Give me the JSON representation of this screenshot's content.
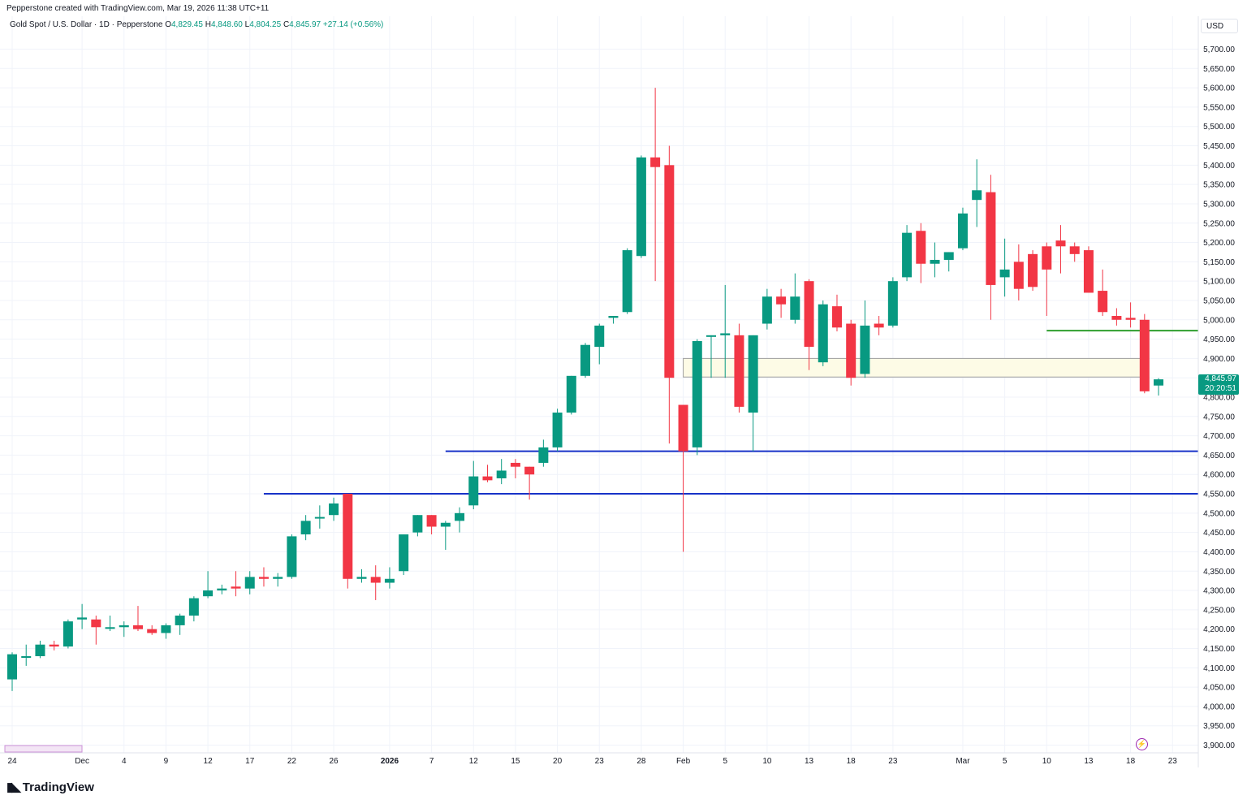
{
  "header": {
    "credit": "Pepperstone created with TradingView.com, Mar 19, 2026 11:38 UTC+11",
    "title": "Gold Spot / U.S. Dollar · 1D · Pepperstone",
    "o_key": "O",
    "o_val": "4,829.45",
    "h_key": "H",
    "h_val": "4,848.60",
    "l_key": "L",
    "l_val": "4,804.25",
    "c_key": "C",
    "c_val": "4,845.97",
    "change": "+27.14 (+0.56%)",
    "currency": "USD"
  },
  "last_price": {
    "price": "4,845.97",
    "countdown": "20:20:51"
  },
  "footer": {
    "logo_text": "TradingView"
  },
  "colors": {
    "up": "#089981",
    "down": "#f23645",
    "blue_line": "#1732c8",
    "green_line": "#2e9e2e",
    "zone_fill": "#fdfbe6",
    "grid": "#f0f3fa"
  },
  "chart_data": {
    "type": "candlestick",
    "symbol": "Gold Spot / U.S. Dollar",
    "interval": "1D",
    "ylim": [
      3880,
      5740
    ],
    "y_ticks": [
      "5,700.00",
      "5,650.00",
      "5,600.00",
      "5,550.00",
      "5,500.00",
      "5,450.00",
      "5,400.00",
      "5,350.00",
      "5,300.00",
      "5,250.00",
      "5,200.00",
      "5,150.00",
      "5,100.00",
      "5,050.00",
      "5,000.00",
      "4,950.00",
      "4,900.00",
      "4,850.00",
      "4,800.00",
      "4,750.00",
      "4,700.00",
      "4,650.00",
      "4,600.00",
      "4,550.00",
      "4,500.00",
      "4,450.00",
      "4,400.00",
      "4,350.00",
      "4,300.00",
      "4,250.00",
      "4,200.00",
      "4,150.00",
      "4,100.00",
      "4,050.00",
      "4,000.00",
      "3,950.00",
      "3,900.00"
    ],
    "x_ticks": [
      {
        "label": "24",
        "bar": 0
      },
      {
        "label": "Dec",
        "bar": 5
      },
      {
        "label": "4",
        "bar": 8
      },
      {
        "label": "9",
        "bar": 11
      },
      {
        "label": "12",
        "bar": 14
      },
      {
        "label": "17",
        "bar": 17
      },
      {
        "label": "22",
        "bar": 20
      },
      {
        "label": "26",
        "bar": 23
      },
      {
        "label": "2026",
        "bar": 27,
        "bold": true
      },
      {
        "label": "7",
        "bar": 30
      },
      {
        "label": "12",
        "bar": 33
      },
      {
        "label": "15",
        "bar": 36
      },
      {
        "label": "20",
        "bar": 39
      },
      {
        "label": "23",
        "bar": 42
      },
      {
        "label": "28",
        "bar": 45
      },
      {
        "label": "Feb",
        "bar": 48
      },
      {
        "label": "5",
        "bar": 51
      },
      {
        "label": "10",
        "bar": 54
      },
      {
        "label": "13",
        "bar": 57
      },
      {
        "label": "18",
        "bar": 60
      },
      {
        "label": "23",
        "bar": 63
      },
      {
        "label": "Mar",
        "bar": 68
      },
      {
        "label": "5",
        "bar": 71
      },
      {
        "label": "10",
        "bar": 74
      },
      {
        "label": "13",
        "bar": 77
      },
      {
        "label": "18",
        "bar": 80
      },
      {
        "label": "23",
        "bar": 83
      }
    ],
    "candles": [
      [
        4070,
        4140,
        4040,
        4135
      ],
      [
        4130,
        4160,
        4105,
        4130
      ],
      [
        4130,
        4170,
        4125,
        4160
      ],
      [
        4160,
        4170,
        4145,
        4155
      ],
      [
        4155,
        4225,
        4150,
        4220
      ],
      [
        4225,
        4265,
        4200,
        4230
      ],
      [
        4225,
        4235,
        4160,
        4205
      ],
      [
        4205,
        4235,
        4195,
        4205
      ],
      [
        4205,
        4220,
        4180,
        4210
      ],
      [
        4210,
        4260,
        4195,
        4200
      ],
      [
        4200,
        4210,
        4185,
        4190
      ],
      [
        4190,
        4215,
        4175,
        4210
      ],
      [
        4210,
        4240,
        4185,
        4235
      ],
      [
        4235,
        4285,
        4220,
        4280
      ],
      [
        4285,
        4350,
        4280,
        4300
      ],
      [
        4300,
        4315,
        4290,
        4305
      ],
      [
        4310,
        4350,
        4285,
        4305
      ],
      [
        4305,
        4350,
        4290,
        4335
      ],
      [
        4335,
        4360,
        4310,
        4330
      ],
      [
        4330,
        4345,
        4310,
        4335
      ],
      [
        4335,
        4445,
        4330,
        4440
      ],
      [
        4445,
        4495,
        4430,
        4480
      ],
      [
        4490,
        4520,
        4460,
        4490
      ],
      [
        4495,
        4540,
        4480,
        4525
      ],
      [
        4550,
        4550,
        4305,
        4330
      ],
      [
        4330,
        4355,
        4320,
        4335
      ],
      [
        4335,
        4365,
        4275,
        4320
      ],
      [
        4320,
        4360,
        4305,
        4330
      ],
      [
        4350,
        4445,
        4340,
        4445
      ],
      [
        4450,
        4495,
        4440,
        4495
      ],
      [
        4495,
        4495,
        4445,
        4465
      ],
      [
        4465,
        4480,
        4405,
        4475
      ],
      [
        4480,
        4515,
        4450,
        4500
      ],
      [
        4520,
        4635,
        4510,
        4595
      ],
      [
        4595,
        4625,
        4580,
        4585
      ],
      [
        4590,
        4640,
        4575,
        4610
      ],
      [
        4630,
        4640,
        4590,
        4620
      ],
      [
        4620,
        4610,
        4535,
        4600
      ],
      [
        4630,
        4690,
        4620,
        4670
      ],
      [
        4670,
        4770,
        4660,
        4760
      ],
      [
        4760,
        4840,
        4755,
        4855
      ],
      [
        4855,
        4940,
        4850,
        4935
      ],
      [
        4930,
        4990,
        4885,
        4985
      ],
      [
        5005,
        5005,
        4990,
        5010
      ],
      [
        5020,
        5185,
        5015,
        5180
      ],
      [
        5165,
        5425,
        5160,
        5420
      ],
      [
        5420,
        5600,
        5100,
        5395
      ],
      [
        5400,
        5450,
        4680,
        4850
      ],
      [
        4780,
        4780,
        4400,
        4660
      ],
      [
        4670,
        4950,
        4650,
        4945
      ],
      [
        4960,
        4960,
        4850,
        4960
      ],
      [
        4960,
        5090,
        4850,
        4965
      ],
      [
        4960,
        4990,
        4760,
        4775
      ],
      [
        4760,
        4960,
        4660,
        4960
      ],
      [
        4990,
        5080,
        4975,
        5060
      ],
      [
        5060,
        5080,
        5005,
        5040
      ],
      [
        5000,
        5120,
        4990,
        5060
      ],
      [
        5100,
        5105,
        4870,
        4930
      ],
      [
        4890,
        5050,
        4880,
        5040
      ],
      [
        5035,
        5065,
        4970,
        4980
      ],
      [
        4990,
        5000,
        4830,
        4850
      ],
      [
        4860,
        5050,
        4850,
        4985
      ],
      [
        4990,
        5010,
        4960,
        4980
      ],
      [
        4985,
        5110,
        4980,
        5100
      ],
      [
        5110,
        5245,
        5100,
        5225
      ],
      [
        5230,
        5250,
        5095,
        5145
      ],
      [
        5145,
        5200,
        5110,
        5155
      ],
      [
        5155,
        5170,
        5125,
        5175
      ],
      [
        5185,
        5290,
        5180,
        5275
      ],
      [
        5310,
        5415,
        5240,
        5335
      ],
      [
        5330,
        5375,
        5000,
        5090
      ],
      [
        5110,
        5210,
        5060,
        5130
      ],
      [
        5150,
        5195,
        5050,
        5080
      ],
      [
        5170,
        5180,
        5075,
        5085
      ],
      [
        5190,
        5200,
        5010,
        5130
      ],
      [
        5205,
        5245,
        5120,
        5190
      ],
      [
        5190,
        5200,
        5150,
        5170
      ],
      [
        5180,
        5190,
        5080,
        5070
      ],
      [
        5075,
        5130,
        5010,
        5020
      ],
      [
        5010,
        5030,
        4985,
        5000
      ],
      [
        5005,
        5045,
        4980,
        5000
      ],
      [
        5000,
        5015,
        4810,
        4815
      ],
      [
        4830,
        4849,
        4804,
        4846
      ]
    ],
    "horizontal_lines": [
      {
        "price": 4550,
        "from_bar": 18,
        "color": "blue"
      },
      {
        "price": 4660,
        "from_bar": 31,
        "color": "blue"
      },
      {
        "price": 4972,
        "from_bar": 74,
        "color": "green"
      }
    ],
    "zone": {
      "from_bar": 48,
      "to_bar": 81,
      "top": 4900,
      "bottom": 4852
    }
  }
}
